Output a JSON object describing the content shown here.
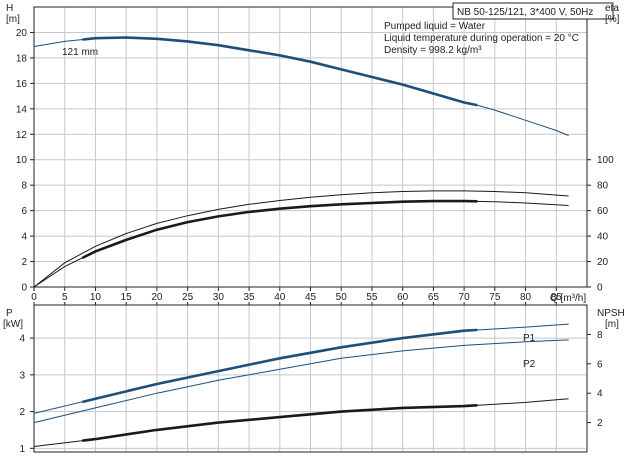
{
  "chart_data": [
    {
      "type": "line",
      "title": "NB 50-125/121, 3*400 V, 50Hz",
      "annotations": [
        "Pumped liquid = Water",
        "Liquid temperature during operation = 20 °C",
        "Density = 998.2 kg/m³"
      ],
      "curve_label": "121 mm",
      "xlabel": "Q [m³/h]",
      "ylabel": "H",
      "ylabel_unit": "[m]",
      "y2label": "eta",
      "y2label_unit": "[%]",
      "xlim": [
        0,
        90
      ],
      "ylim": [
        0,
        22
      ],
      "y2lim": [
        0,
        100
      ],
      "x_ticks": [
        "0",
        "5",
        "10",
        "15",
        "20",
        "25",
        "30",
        "35",
        "40",
        "45",
        "50",
        "55",
        "60",
        "65",
        "70",
        "75",
        "80",
        "85"
      ],
      "y_ticks": [
        "0",
        "2",
        "4",
        "6",
        "8",
        "10",
        "12",
        "14",
        "16",
        "18",
        "20"
      ],
      "y2_ticks": [
        "0",
        "20",
        "40",
        "60",
        "80",
        "100"
      ],
      "grid": true,
      "series": [
        {
          "name": "H",
          "color": "#1f4e79",
          "x": [
            0,
            5,
            10,
            15,
            20,
            25,
            30,
            35,
            40,
            45,
            50,
            55,
            60,
            65,
            70,
            72,
            75,
            80,
            85,
            87
          ],
          "y": [
            18.9,
            19.3,
            19.55,
            19.6,
            19.5,
            19.3,
            19.0,
            18.6,
            18.2,
            17.7,
            17.1,
            16.5,
            15.9,
            15.2,
            14.5,
            14.3,
            13.9,
            13.1,
            12.3,
            11.9
          ],
          "bold_range": [
            8,
            72
          ]
        },
        {
          "name": "eta (upper)",
          "color": "#1a1a1a",
          "x": [
            0,
            5,
            10,
            15,
            20,
            25,
            30,
            35,
            40,
            45,
            50,
            55,
            60,
            65,
            70,
            75,
            80,
            87
          ],
          "y": [
            0,
            1.9,
            3.2,
            4.2,
            5.0,
            5.6,
            6.1,
            6.5,
            6.8,
            7.05,
            7.25,
            7.4,
            7.5,
            7.55,
            7.55,
            7.5,
            7.4,
            7.15
          ]
        },
        {
          "name": "eta (lower)",
          "color": "#1a1a1a",
          "x": [
            0,
            5,
            10,
            15,
            20,
            25,
            30,
            35,
            40,
            45,
            50,
            55,
            60,
            65,
            70,
            75,
            80,
            87
          ],
          "y": [
            0,
            1.6,
            2.8,
            3.7,
            4.5,
            5.1,
            5.55,
            5.9,
            6.15,
            6.35,
            6.5,
            6.6,
            6.7,
            6.75,
            6.75,
            6.7,
            6.6,
            6.4
          ],
          "bold_range": [
            8,
            72
          ]
        }
      ]
    },
    {
      "type": "line",
      "ylabel": "P",
      "ylabel_unit": "[kW]",
      "y2label": "NPSH",
      "y2label_unit": "[m]",
      "ylim": [
        0.9,
        4.9
      ],
      "y2lim": [
        0,
        10
      ],
      "y_ticks": [
        "1",
        "2",
        "3",
        "4"
      ],
      "y2_ticks": [
        "2",
        "4",
        "6",
        "8"
      ],
      "grid": true,
      "series": [
        {
          "name": "P1",
          "color": "#1f4e79",
          "x": [
            0,
            10,
            20,
            30,
            40,
            50,
            60,
            70,
            80,
            87
          ],
          "y": [
            1.95,
            2.35,
            2.75,
            3.1,
            3.45,
            3.75,
            4.0,
            4.2,
            4.3,
            4.38
          ],
          "bold_range": [
            8,
            72
          ]
        },
        {
          "name": "P2",
          "color": "#1f4e79",
          "x": [
            0,
            10,
            20,
            30,
            40,
            50,
            60,
            70,
            80,
            87
          ],
          "y": [
            1.7,
            2.1,
            2.5,
            2.85,
            3.15,
            3.45,
            3.65,
            3.8,
            3.9,
            3.95
          ]
        },
        {
          "name": "NPSH",
          "color": "#1a1a1a",
          "x": [
            0,
            10,
            20,
            30,
            40,
            50,
            60,
            70,
            80,
            87
          ],
          "y": [
            1.05,
            1.25,
            1.5,
            1.7,
            1.85,
            2.0,
            2.1,
            2.15,
            2.25,
            2.35
          ],
          "bold_range": [
            8,
            72
          ]
        }
      ]
    }
  ]
}
